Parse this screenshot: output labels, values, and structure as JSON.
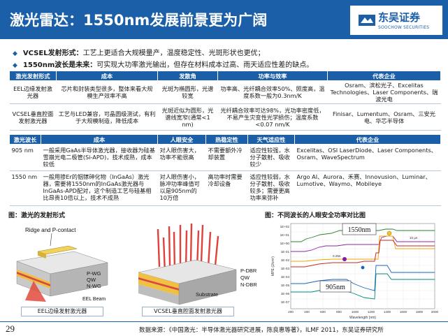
{
  "header": {
    "title": "激光雷达：1550nm发展前景更为广阔",
    "logo_cn": "东吴证券",
    "logo_en": "SOOCHOW SECURITIES",
    "color": "#1a5fa8"
  },
  "bullets": [
    {
      "label": "VCSEL发射形式：",
      "text": "工艺上更适合大规模量产，温度稳定性、光斑形状也更优；"
    },
    {
      "label": "1550nm波长是未来：",
      "text": "可实现大功率激光输出，但存在材料成本过高、雨天适应性差的缺点。"
    }
  ],
  "table1": {
    "headers": [
      "激光发射形式",
      "成本",
      "发散角",
      "功率与效率",
      "代表企业"
    ],
    "rows": [
      [
        "EEL边缘发射激光器",
        "芯片和封装类型很多，整体来看大规模生产效率不高",
        "光斑为椭圆形，光谱较宽",
        "功率高、光纤耦合效率50%、照度高，温度系数一般为0.3nm/K",
        "Osram、滨松光子、Excelitas Technologies、Laser Components、瑞波光电"
      ],
      [
        "VCSEL垂直腔面发射激光器",
        "工艺与LED兼容，可晶圆级测试，有利于大规模制造，降低成本",
        "光斑近似为圆形，光谱线宽窄(通常<1 nm)",
        "光纤耦合效率可达98%，光功率密度低，不易产生灾变性光学损伤；温度系数<0.07 nm/K",
        "Finisar、Lumentum、Osram、三安光电、华芯半导体"
      ]
    ]
  },
  "table2": {
    "headers": [
      "激光波长",
      "成本",
      "人眼安全",
      "热稳定性",
      "天气适应性",
      "代表企业"
    ],
    "rows": [
      [
        "905 nm",
        "一般采用GaAs半导体激光器，接收器为硅基雪崩光电二极管(Si-APD)，技术成熟，成本较低",
        "对人眼伤害大，功率不能很高",
        "不需要额外冷却装置",
        "适应性较强，水分子散射、吸收较少",
        "Excelitas、OSI LaserDiode、Laser Components、Osram、WaveSpectrum"
      ],
      [
        "1550 nm",
        "一般用掺Er的铟镓砷化物（InGaAs）激光器，需要将1550nm的InGaAs激光器与InGaAs-APD配对，这个制造工艺与硅基相比昂贵10倍以上，技术不成熟",
        "对人眼伤害小，脉冲功率峰值可以是905nm的10万倍",
        "高功率时需要冷却设备",
        "适应性较弱，水分子散射、吸收较多；需要更高功率来弥补",
        "Argo AI、Aurora、禾赛、Innovusion、Luminar、Lumotive、Waymo、Mobileye"
      ]
    ]
  },
  "figures": {
    "left_title": "图：激光的发射形式",
    "right_title": "图：不同波长的人眼安全功率对比图",
    "eel_caption": "EEL边缘发射激光器",
    "vcsel_caption": "VCSEL垂直腔面发射激光器",
    "eel_labels": {
      "top": "Ridge and P-contact",
      "pwg": "P-WG",
      "qw": "QW",
      "nwg": "N-WG",
      "beam": "EEL Beam"
    },
    "vcsel_labels": {
      "pdbr": "P-DBR",
      "qw": "QW",
      "ndbr": "N-DBR",
      "substrate": "Substrate"
    },
    "chart": {
      "ylabel": "MPE (J/cm²)",
      "xlabel": "Wavelength (nm)",
      "xticks": [
        "200",
        "400",
        "600",
        "800",
        "1000",
        "1200",
        "1400",
        "1600",
        "1800",
        "2000"
      ],
      "yticks": [
        "1E+02",
        "1E+01",
        "1E+00",
        "1E-01",
        "1E-02",
        "1E-03",
        "1E-04",
        "1E-05",
        "1E-06",
        "1E-07"
      ],
      "callout_1550": "1550nm",
      "callout_905": "905nm",
      "series_labels": [
        "0.25s",
        "10 μs"
      ]
    }
  },
  "footer": {
    "page": "29",
    "source": "数据来源：《中国激光：半导体激光器研究进展，陈良惠等著》，ILMF 2011，东吴证券研究所"
  }
}
